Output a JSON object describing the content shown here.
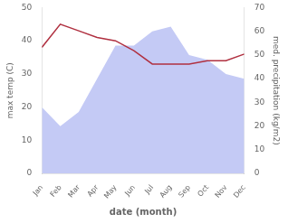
{
  "chart_data": {
    "type": "line",
    "xlabel": "date (month)",
    "ylabel": "max temp (C)",
    "y2label": "med. precipitation (kg/m2)",
    "categories": [
      "Jan",
      "Feb",
      "Mar",
      "Apr",
      "May",
      "Jun",
      "Jul",
      "Aug",
      "Sep",
      "Oct",
      "Nov",
      "Dec"
    ],
    "series": [
      {
        "type": "area",
        "axis": "y2",
        "color": "#c4caf5",
        "values": [
          28,
          20,
          26,
          40,
          54,
          54,
          60,
          62,
          50,
          48,
          42,
          40
        ]
      },
      {
        "type": "line",
        "color": "#b03040",
        "values": [
          38,
          45,
          43,
          41,
          40,
          37,
          33,
          33,
          33,
          34,
          34,
          36
        ]
      }
    ],
    "ylim": [
      0,
      50
    ],
    "yticks": [
      0,
      10,
      20,
      30,
      40,
      50
    ],
    "y2lim": [
      0,
      70
    ],
    "y2ticks": [
      0,
      10,
      20,
      30,
      40,
      50,
      60,
      70
    ],
    "grid": false
  }
}
